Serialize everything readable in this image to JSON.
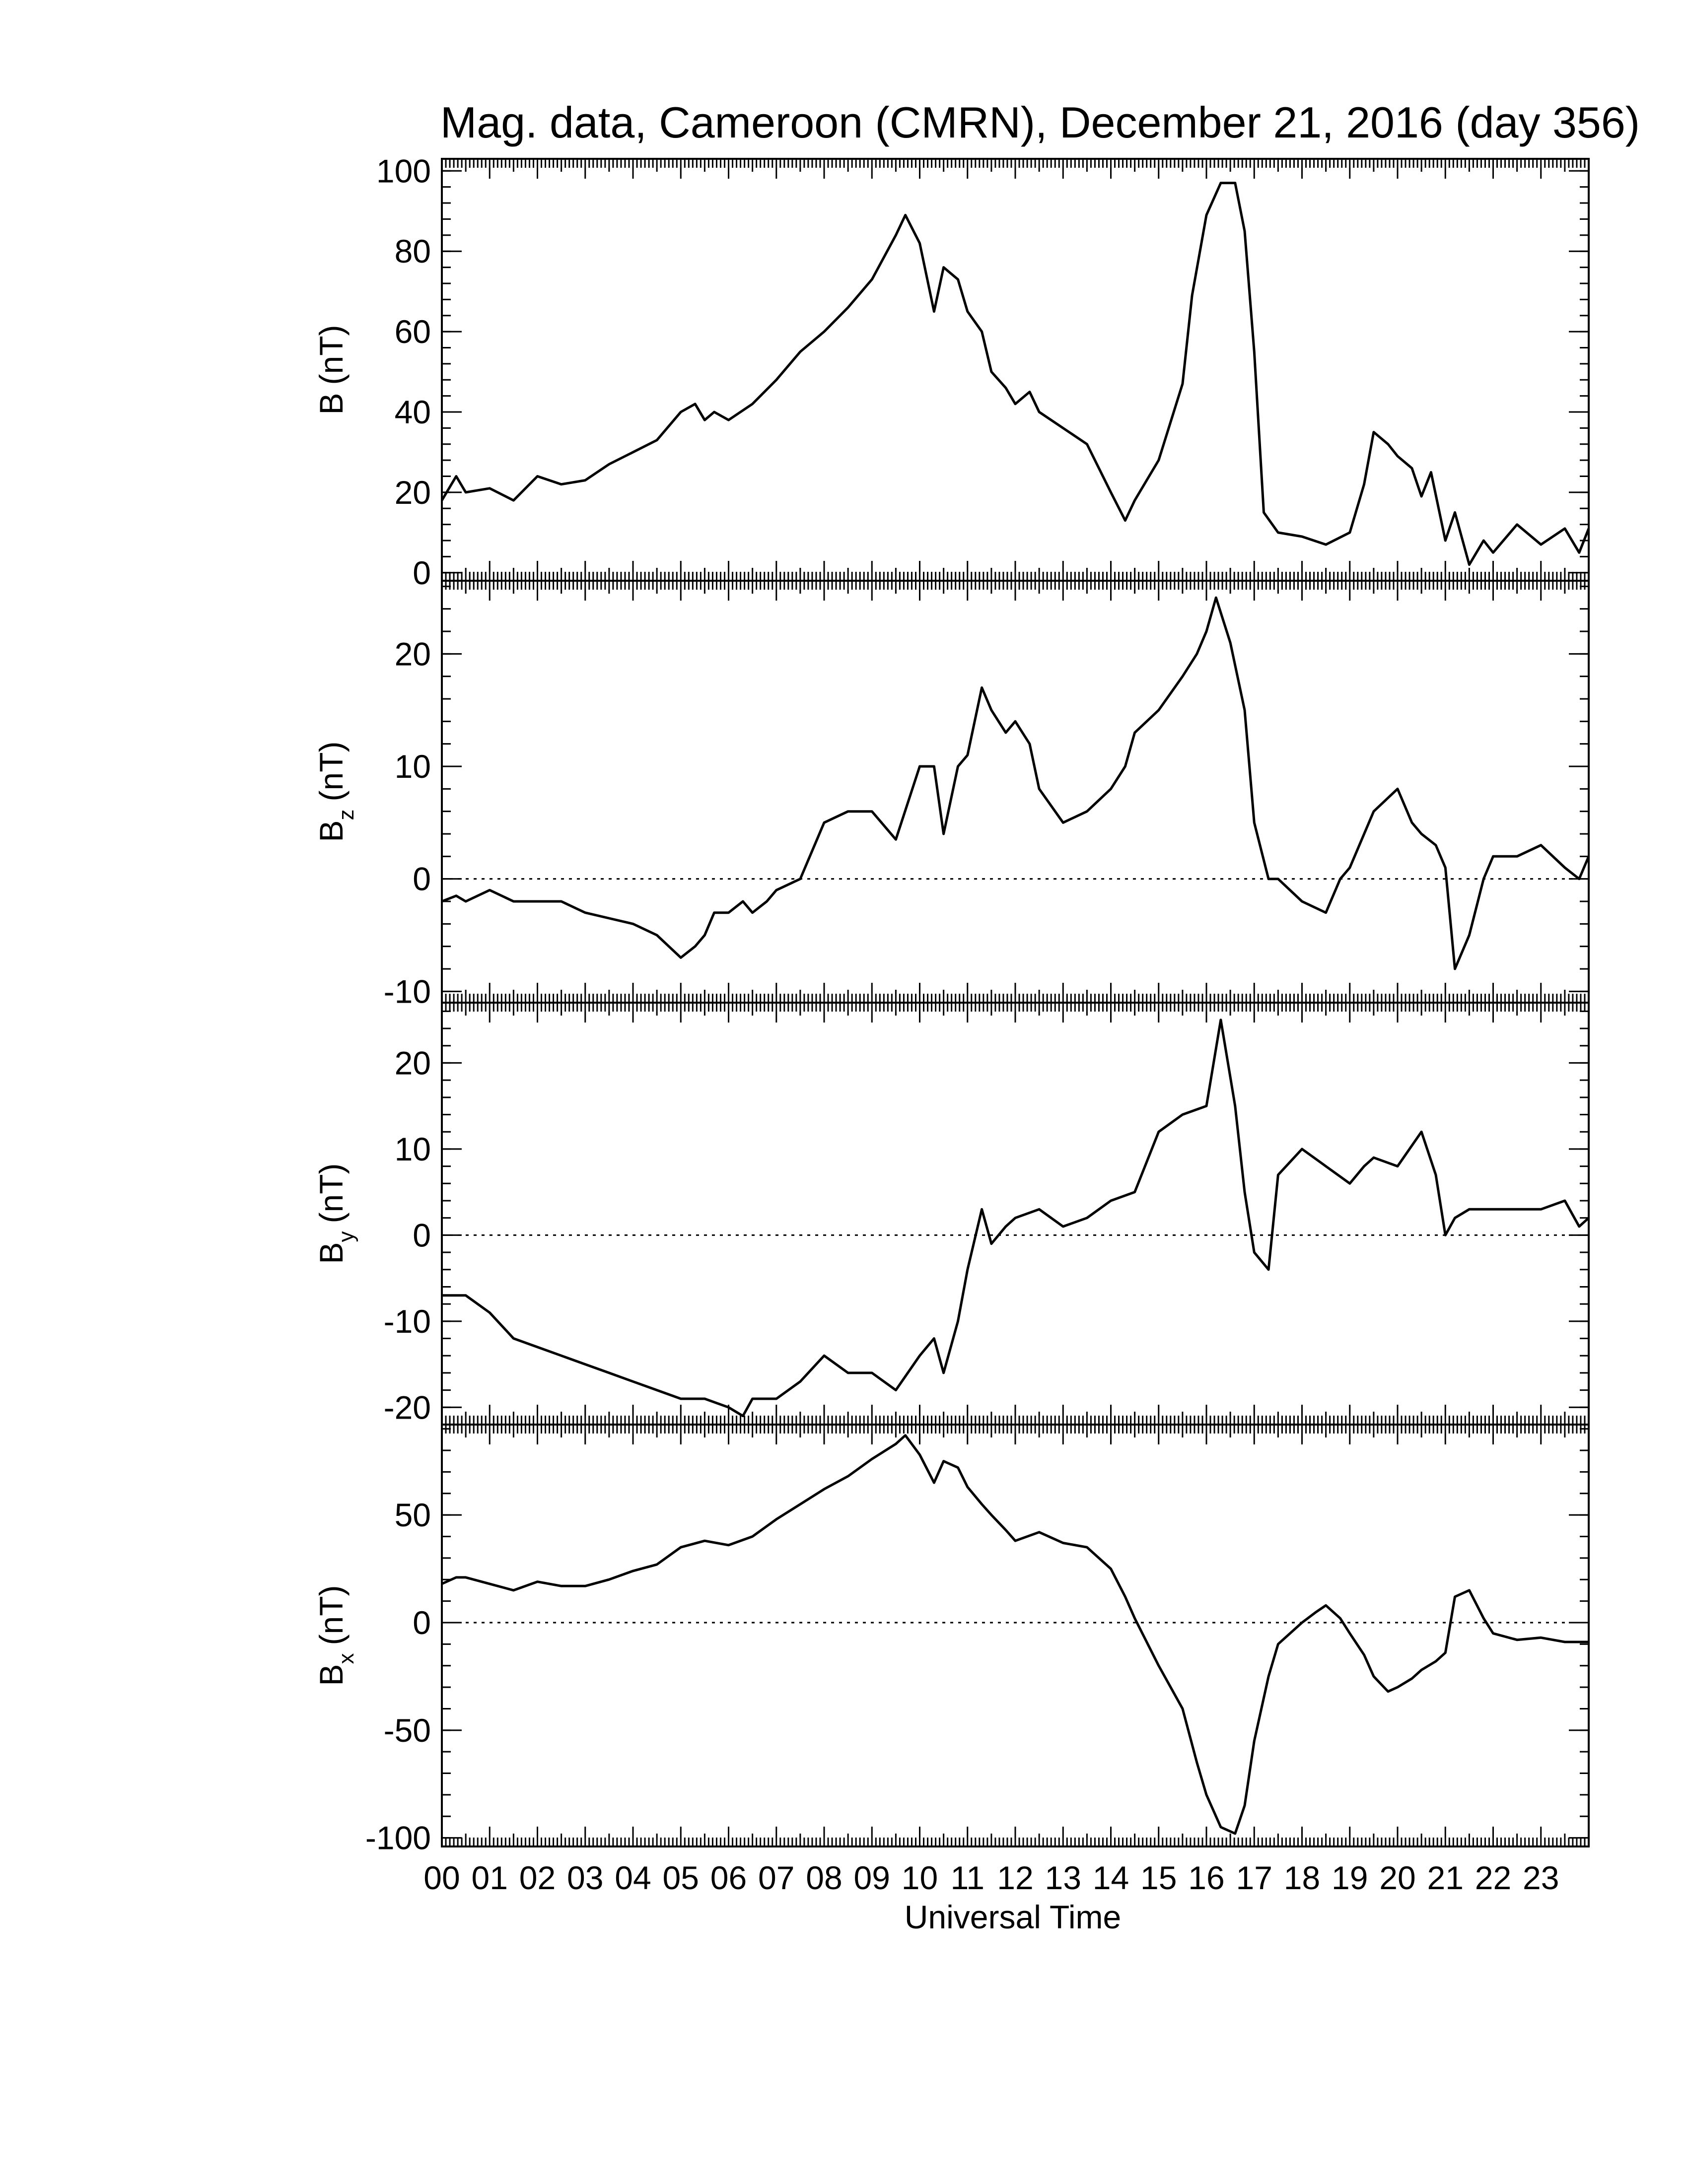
{
  "chart_data": {
    "type": "line",
    "title": "Mag. data, Cameroon (CMRN), December 21, 2016 (day 356)",
    "xlabel": "Universal Time",
    "xlim": [
      0,
      24
    ],
    "x_tick_labels": [
      "00",
      "01",
      "02",
      "03",
      "04",
      "05",
      "06",
      "07",
      "08",
      "09",
      "10",
      "11",
      "12",
      "13",
      "14",
      "15",
      "16",
      "17",
      "18",
      "19",
      "20",
      "21",
      "22",
      "23"
    ],
    "grid": false,
    "panels": [
      {
        "id": "b",
        "ylabel": "B",
        "ylabel_sub": "",
        "ylabel_unit": "(nT)",
        "ylim": [
          -2,
          103
        ],
        "yticks": [
          0,
          20,
          40,
          60,
          80,
          100
        ],
        "ytick_labels": [
          "0",
          "20",
          "40",
          "60",
          "80",
          "100"
        ],
        "zero_line": false,
        "x": [
          0,
          0.3,
          0.5,
          1,
          1.5,
          2,
          2.5,
          3,
          3.5,
          4,
          4.5,
          5,
          5.3,
          5.5,
          5.7,
          6,
          6.5,
          7,
          7.5,
          8,
          8.5,
          9,
          9.5,
          9.7,
          10,
          10.3,
          10.5,
          10.8,
          11,
          11.3,
          11.5,
          11.8,
          12,
          12.3,
          12.5,
          13,
          13.5,
          14,
          14.3,
          14.5,
          15,
          15.5,
          15.7,
          16,
          16.3,
          16.6,
          16.8,
          17,
          17.2,
          17.5,
          18,
          18.5,
          19,
          19.3,
          19.5,
          19.8,
          20,
          20.3,
          20.5,
          20.7,
          21,
          21.2,
          21.5,
          21.8,
          22,
          22.5,
          23,
          23.5,
          23.8,
          24
        ],
        "values": [
          18,
          24,
          20,
          21,
          18,
          24,
          22,
          23,
          27,
          30,
          33,
          40,
          42,
          38,
          40,
          38,
          42,
          48,
          55,
          60,
          66,
          73,
          84,
          89,
          82,
          65,
          76,
          73,
          65,
          60,
          50,
          46,
          42,
          45,
          40,
          36,
          32,
          20,
          13,
          18,
          28,
          47,
          69,
          89,
          97,
          97,
          85,
          55,
          15,
          10,
          9,
          7,
          10,
          22,
          35,
          32,
          29,
          26,
          19,
          25,
          8,
          15,
          2,
          8,
          5,
          12,
          7,
          11,
          5,
          11
        ]
      },
      {
        "id": "bz",
        "ylabel": "B",
        "ylabel_sub": "z",
        "ylabel_unit": "(nT)",
        "ylim": [
          -11,
          26.5
        ],
        "yticks": [
          -10,
          0,
          10,
          20
        ],
        "ytick_labels": [
          "-10",
          "0",
          "10",
          "20"
        ],
        "zero_line": true,
        "x": [
          0,
          0.3,
          0.5,
          1,
          1.5,
          2,
          2.5,
          3,
          3.5,
          4,
          4.5,
          5,
          5.3,
          5.5,
          5.7,
          6,
          6.3,
          6.5,
          6.8,
          7,
          7.5,
          8,
          8.5,
          9,
          9.5,
          10,
          10.3,
          10.5,
          10.8,
          11,
          11.3,
          11.5,
          11.8,
          12,
          12.3,
          12.5,
          13,
          13.5,
          14,
          14.3,
          14.5,
          15,
          15.5,
          15.8,
          16,
          16.2,
          16.5,
          16.8,
          17,
          17.3,
          17.5,
          18,
          18.5,
          18.8,
          19,
          19.5,
          20,
          20.3,
          20.5,
          20.8,
          21,
          21.2,
          21.5,
          21.8,
          22,
          22.5,
          23,
          23.5,
          23.8,
          24
        ],
        "values": [
          -2,
          -1.5,
          -2,
          -1,
          -2,
          -2,
          -2,
          -3,
          -3.5,
          -4,
          -5,
          -7,
          -6,
          -5,
          -3,
          -3,
          -2,
          -3,
          -2,
          -1,
          0,
          5,
          6,
          6,
          3.5,
          10,
          10,
          4,
          10,
          11,
          17,
          15,
          13,
          14,
          12,
          8,
          5,
          6,
          8,
          10,
          13,
          15,
          18,
          20,
          22,
          25,
          21,
          15,
          5,
          0,
          0,
          -2,
          -3,
          0,
          1,
          6,
          8,
          5,
          4,
          3,
          1,
          -8,
          -5,
          0,
          2,
          2,
          3,
          1,
          0,
          2
        ]
      },
      {
        "id": "by",
        "ylabel": "B",
        "ylabel_sub": "y",
        "ylabel_unit": "(nT)",
        "ylim": [
          -22,
          27
        ],
        "yticks": [
          -20,
          -10,
          0,
          10,
          20
        ],
        "ytick_labels": [
          "-20",
          "-10",
          "0",
          "10",
          "20"
        ],
        "zero_line": true,
        "x": [
          0,
          0.5,
          1,
          1.5,
          2,
          2.5,
          3,
          3.5,
          4,
          4.5,
          5,
          5.5,
          6,
          6.3,
          6.5,
          7,
          7.5,
          8,
          8.5,
          9,
          9.5,
          10,
          10.3,
          10.5,
          10.8,
          11,
          11.3,
          11.5,
          11.8,
          12,
          12.5,
          13,
          13.5,
          14,
          14.5,
          15,
          15.5,
          16,
          16.3,
          16.6,
          16.8,
          17,
          17.3,
          17.5,
          18,
          18.5,
          19,
          19.3,
          19.5,
          20,
          20.5,
          20.8,
          21,
          21.2,
          21.5,
          22,
          22.5,
          23,
          23.5,
          23.8,
          24
        ],
        "values": [
          -7,
          -7,
          -9,
          -12,
          -13,
          -14,
          -15,
          -16,
          -17,
          -18,
          -19,
          -19,
          -20,
          -21,
          -19,
          -19,
          -17,
          -14,
          -16,
          -16,
          -18,
          -14,
          -12,
          -16,
          -10,
          -4,
          3,
          -1,
          1,
          2,
          3,
          1,
          2,
          4,
          5,
          12,
          14,
          15,
          25,
          15,
          5,
          -2,
          -4,
          7,
          10,
          8,
          6,
          8,
          9,
          8,
          12,
          7,
          0,
          2,
          3,
          3,
          3,
          3,
          4,
          1,
          2
        ]
      },
      {
        "id": "bx",
        "ylabel": "B",
        "ylabel_sub": "x",
        "ylabel_unit": "(nT)",
        "ylim": [
          -104,
          92
        ],
        "yticks": [
          -100,
          -50,
          0,
          50
        ],
        "ytick_labels": [
          "-100",
          "-50",
          "0",
          "50"
        ],
        "zero_line": true,
        "x": [
          0,
          0.3,
          0.5,
          1,
          1.5,
          2,
          2.5,
          3,
          3.5,
          4,
          4.5,
          5,
          5.5,
          6,
          6.5,
          7,
          7.5,
          8,
          8.5,
          9,
          9.5,
          9.7,
          10,
          10.3,
          10.5,
          10.8,
          11,
          11.3,
          11.5,
          11.8,
          12,
          12.5,
          13,
          13.5,
          14,
          14.3,
          14.5,
          15,
          15.5,
          15.8,
          16,
          16.3,
          16.6,
          16.8,
          17,
          17.3,
          17.5,
          18,
          18.3,
          18.5,
          18.8,
          19,
          19.3,
          19.5,
          19.8,
          20,
          20.3,
          20.5,
          20.8,
          21,
          21.2,
          21.5,
          21.8,
          22,
          22.5,
          23,
          23.5,
          24
        ],
        "values": [
          18,
          21,
          21,
          18,
          15,
          19,
          17,
          17,
          20,
          24,
          27,
          35,
          38,
          36,
          40,
          48,
          55,
          62,
          68,
          76,
          83,
          87,
          78,
          65,
          75,
          72,
          63,
          55,
          50,
          43,
          38,
          42,
          37,
          35,
          25,
          12,
          2,
          -20,
          -40,
          -65,
          -80,
          -95,
          -98,
          -85,
          -55,
          -25,
          -10,
          0,
          5,
          8,
          2,
          -5,
          -15,
          -25,
          -32,
          -30,
          -26,
          -22,
          -18,
          -14,
          12,
          15,
          2,
          -5,
          -8,
          -7,
          -9,
          -9
        ]
      }
    ]
  }
}
